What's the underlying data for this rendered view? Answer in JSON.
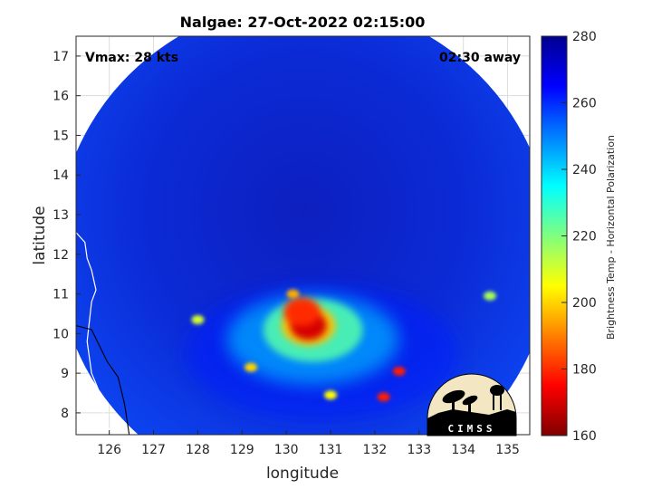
{
  "chart_data": {
    "type": "heatmap",
    "title": "Nalgae: 27-Oct-2022 02:15:00",
    "xlabel": "longitude",
    "ylabel": "latitude",
    "xlim": [
      125.25,
      135.5
    ],
    "ylim": [
      7.45,
      17.5
    ],
    "xticks": [
      126,
      127,
      128,
      129,
      130,
      131,
      132,
      133,
      134,
      135
    ],
    "yticks": [
      8,
      9,
      10,
      11,
      12,
      13,
      14,
      15,
      16,
      17
    ],
    "grid": true,
    "annotations": {
      "left": "Vmax: 28 kts",
      "right": "02:30 away"
    },
    "colorbar": {
      "label": "Brightness Temp - Horizontal Polarization",
      "range": [
        160,
        280
      ],
      "ticks": [
        160,
        180,
        200,
        220,
        240,
        260,
        280
      ],
      "colormap": "jet",
      "placement": "right"
    },
    "swath": {
      "center": [
        130.4,
        12.1
      ],
      "radius_deg": 5.6
    },
    "features": [
      {
        "name": "eyewall core",
        "lon": 130.5,
        "lat": 10.2,
        "tb": 170
      },
      {
        "name": "central convection",
        "lon": 130.35,
        "lat": 10.55,
        "tb": 180
      },
      {
        "name": "rainband cell",
        "lon": 132.55,
        "lat": 9.05,
        "tb": 178
      },
      {
        "name": "rainband cell",
        "lon": 132.2,
        "lat": 8.4,
        "tb": 178
      },
      {
        "name": "rainband cell",
        "lon": 130.15,
        "lat": 11.0,
        "tb": 195
      },
      {
        "name": "rainband cell",
        "lon": 129.2,
        "lat": 9.15,
        "tb": 200
      },
      {
        "name": "rainband cell",
        "lon": 131.0,
        "lat": 8.45,
        "tb": 205
      },
      {
        "name": "cloud cell",
        "lon": 128.0,
        "lat": 10.35,
        "tb": 210
      },
      {
        "name": "cloud cell",
        "lon": 134.6,
        "lat": 10.95,
        "tb": 215
      }
    ],
    "logo_text": "CIMSS"
  },
  "colors": {
    "background": "#ffffff",
    "swath_base": "#0c2fe0",
    "coastline": "#000000"
  }
}
